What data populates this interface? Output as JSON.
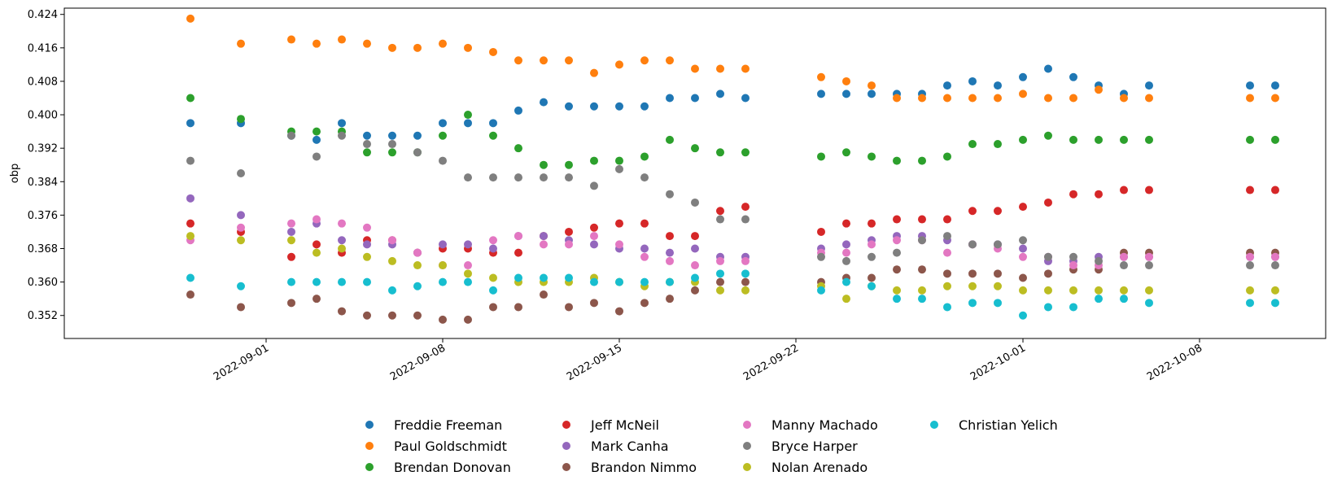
{
  "chart_data": {
    "type": "scatter",
    "title": "",
    "xlabel": "",
    "ylabel": "obp",
    "xlim": [
      "2022-08-24",
      "2022-10-13"
    ],
    "ylim": [
      0.3465,
      0.4255
    ],
    "yticks": [
      "0.352",
      "0.360",
      "0.368",
      "0.376",
      "0.384",
      "0.392",
      "0.400",
      "0.408",
      "0.416",
      "0.424"
    ],
    "xticks": [
      "2022-09-01",
      "2022-09-08",
      "2022-09-15",
      "2022-09-22",
      "2022-10-01",
      "2022-10-08"
    ],
    "grid": false,
    "legend_position": "bottom-center",
    "dates": [
      "2022-08-29",
      "2022-08-31",
      "2022-09-02",
      "2022-09-03",
      "2022-09-04",
      "2022-09-05",
      "2022-09-06",
      "2022-09-07",
      "2022-09-08",
      "2022-09-09",
      "2022-09-10",
      "2022-09-11",
      "2022-09-12",
      "2022-09-13",
      "2022-09-14",
      "2022-09-15",
      "2022-09-16",
      "2022-09-17",
      "2022-09-18",
      "2022-09-19",
      "2022-09-20",
      "2022-09-23",
      "2022-09-24",
      "2022-09-25",
      "2022-09-26",
      "2022-09-27",
      "2022-09-28",
      "2022-09-29",
      "2022-09-30",
      "2022-10-01",
      "2022-10-02",
      "2022-10-03",
      "2022-10-04",
      "2022-10-05",
      "2022-10-06",
      "2022-10-10",
      "2022-10-11"
    ],
    "series": [
      {
        "name": "Freddie Freeman",
        "color": "#1f77b4",
        "values": [
          0.398,
          0.398,
          0.395,
          0.394,
          0.398,
          0.395,
          0.395,
          0.395,
          0.398,
          0.398,
          0.398,
          0.401,
          0.403,
          0.402,
          0.402,
          0.402,
          0.402,
          0.404,
          0.404,
          0.405,
          0.404,
          0.405,
          0.405,
          0.405,
          0.405,
          0.405,
          0.407,
          0.408,
          0.407,
          0.409,
          0.411,
          0.409,
          0.407,
          0.405,
          0.407,
          0.407,
          0.407
        ]
      },
      {
        "name": "Paul Goldschmidt",
        "color": "#ff7f0e",
        "values": [
          0.423,
          0.417,
          0.418,
          0.417,
          0.418,
          0.417,
          0.416,
          0.416,
          0.417,
          0.416,
          0.415,
          0.413,
          0.413,
          0.413,
          0.41,
          0.412,
          0.413,
          0.413,
          0.411,
          0.411,
          0.411,
          0.409,
          0.408,
          0.407,
          0.404,
          0.404,
          0.404,
          0.404,
          0.404,
          0.405,
          0.404,
          0.404,
          0.406,
          0.404,
          0.404,
          0.404,
          0.404
        ]
      },
      {
        "name": "Brendan Donovan",
        "color": "#2ca02c",
        "values": [
          0.404,
          0.399,
          0.396,
          0.396,
          0.396,
          0.391,
          0.391,
          0.391,
          0.395,
          0.4,
          0.395,
          0.392,
          0.388,
          0.388,
          0.389,
          0.389,
          0.39,
          0.394,
          0.392,
          0.391,
          0.391,
          0.39,
          0.391,
          0.39,
          0.389,
          0.389,
          0.39,
          0.393,
          0.393,
          0.394,
          0.395,
          0.394,
          0.394,
          0.394,
          0.394,
          0.394,
          0.394
        ]
      },
      {
        "name": "Jeff McNeil",
        "color": "#d62728",
        "values": [
          0.374,
          0.372,
          0.366,
          0.369,
          0.367,
          0.37,
          0.37,
          0.367,
          0.368,
          0.368,
          0.367,
          0.367,
          0.371,
          0.372,
          0.373,
          0.374,
          0.374,
          0.371,
          0.371,
          0.377,
          0.378,
          0.372,
          0.374,
          0.374,
          0.375,
          0.375,
          0.375,
          0.377,
          0.377,
          0.378,
          0.379,
          0.381,
          0.381,
          0.382,
          0.382,
          0.382,
          0.382
        ]
      },
      {
        "name": "Mark Canha",
        "color": "#9467bd",
        "values": [
          0.38,
          0.376,
          0.372,
          0.374,
          0.37,
          0.369,
          0.369,
          0.367,
          0.369,
          0.369,
          0.368,
          0.371,
          0.371,
          0.37,
          0.369,
          0.368,
          0.368,
          0.367,
          0.368,
          0.366,
          0.366,
          0.368,
          0.369,
          0.37,
          0.371,
          0.371,
          0.37,
          0.369,
          0.369,
          0.368,
          0.365,
          0.365,
          0.366,
          0.366,
          0.366,
          0.366,
          0.366
        ]
      },
      {
        "name": "Brandon Nimmo",
        "color": "#8c564b",
        "values": [
          0.357,
          0.354,
          0.355,
          0.356,
          0.353,
          0.352,
          0.352,
          0.352,
          0.351,
          0.351,
          0.354,
          0.354,
          0.357,
          0.354,
          0.355,
          0.353,
          0.355,
          0.356,
          0.358,
          0.36,
          0.36,
          0.36,
          0.361,
          0.361,
          0.363,
          0.363,
          0.362,
          0.362,
          0.362,
          0.361,
          0.362,
          0.363,
          0.363,
          0.367,
          0.367,
          0.367,
          0.367
        ]
      },
      {
        "name": "Manny Machado",
        "color": "#e377c2",
        "values": [
          0.37,
          0.373,
          0.374,
          0.375,
          0.374,
          0.373,
          0.37,
          0.367,
          0.364,
          0.364,
          0.37,
          0.371,
          0.369,
          0.369,
          0.371,
          0.369,
          0.366,
          0.365,
          0.364,
          0.365,
          0.365,
          0.367,
          0.367,
          0.369,
          0.37,
          0.37,
          0.367,
          0.369,
          0.368,
          0.366,
          0.366,
          0.364,
          0.364,
          0.366,
          0.366,
          0.366,
          0.366
        ]
      },
      {
        "name": "Bryce Harper",
        "color": "#7f7f7f",
        "values": [
          0.389,
          0.386,
          0.395,
          0.39,
          0.395,
          0.393,
          0.393,
          0.391,
          0.389,
          0.385,
          0.385,
          0.385,
          0.385,
          0.385,
          0.383,
          0.387,
          0.385,
          0.381,
          0.379,
          0.375,
          0.375,
          0.366,
          0.365,
          0.366,
          0.367,
          0.37,
          0.371,
          0.369,
          0.369,
          0.37,
          0.366,
          0.366,
          0.365,
          0.364,
          0.364,
          0.364,
          0.364
        ]
      },
      {
        "name": "Nolan Arenado",
        "color": "#bcbd22",
        "values": [
          0.371,
          0.37,
          0.37,
          0.367,
          0.368,
          0.366,
          0.365,
          0.364,
          0.364,
          0.362,
          0.361,
          0.36,
          0.36,
          0.36,
          0.361,
          0.36,
          0.359,
          0.36,
          0.36,
          0.358,
          0.358,
          0.359,
          0.356,
          0.359,
          0.358,
          0.358,
          0.359,
          0.359,
          0.359,
          0.358,
          0.358,
          0.358,
          0.358,
          0.358,
          0.358,
          0.358,
          0.358
        ]
      },
      {
        "name": "Christian Yelich",
        "color": "#17becf",
        "values": [
          0.361,
          0.359,
          0.36,
          0.36,
          0.36,
          0.36,
          0.358,
          0.359,
          0.36,
          0.36,
          0.358,
          0.361,
          0.361,
          0.361,
          0.36,
          0.36,
          0.36,
          0.36,
          0.361,
          0.362,
          0.362,
          0.358,
          0.36,
          0.359,
          0.356,
          0.356,
          0.354,
          0.355,
          0.355,
          0.352,
          0.354,
          0.354,
          0.356,
          0.356,
          0.355,
          0.355,
          0.355
        ]
      }
    ]
  }
}
